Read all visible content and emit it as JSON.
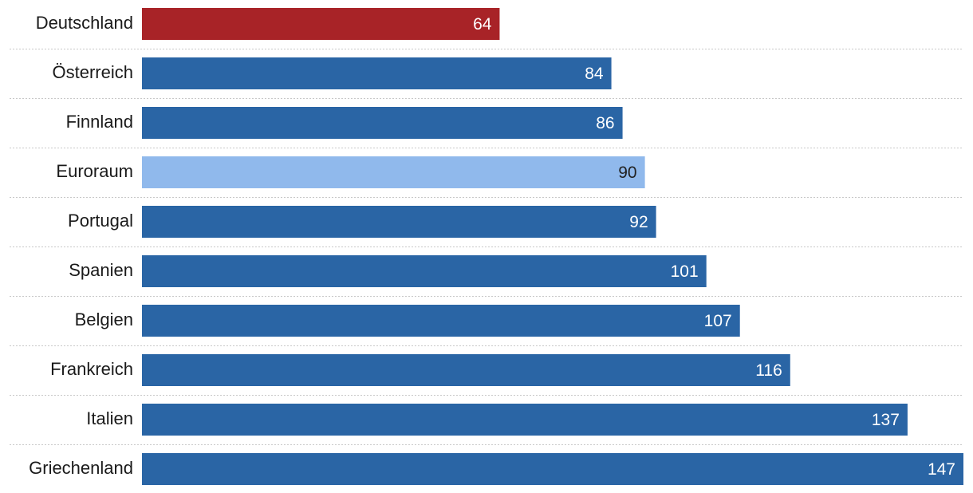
{
  "chart_data": {
    "type": "bar",
    "orientation": "horizontal",
    "categories": [
      "Deutschland",
      "Österreich",
      "Finnland",
      "Euroraum",
      "Portugal",
      "Spanien",
      "Belgien",
      "Frankreich",
      "Italien",
      "Griechenland"
    ],
    "values": [
      64,
      84,
      86,
      90,
      92,
      101,
      107,
      116,
      137,
      147
    ],
    "title": "",
    "xlabel": "",
    "ylabel": "",
    "xlim": [
      0,
      147
    ],
    "grid": false,
    "legend": "none",
    "colors": {
      "highlight": "#a82327",
      "default": "#2a65a5",
      "aggregate": "#90b9ec"
    },
    "bar_colors": [
      "highlight",
      "default",
      "default",
      "aggregate",
      "default",
      "default",
      "default",
      "default",
      "default",
      "default"
    ]
  }
}
